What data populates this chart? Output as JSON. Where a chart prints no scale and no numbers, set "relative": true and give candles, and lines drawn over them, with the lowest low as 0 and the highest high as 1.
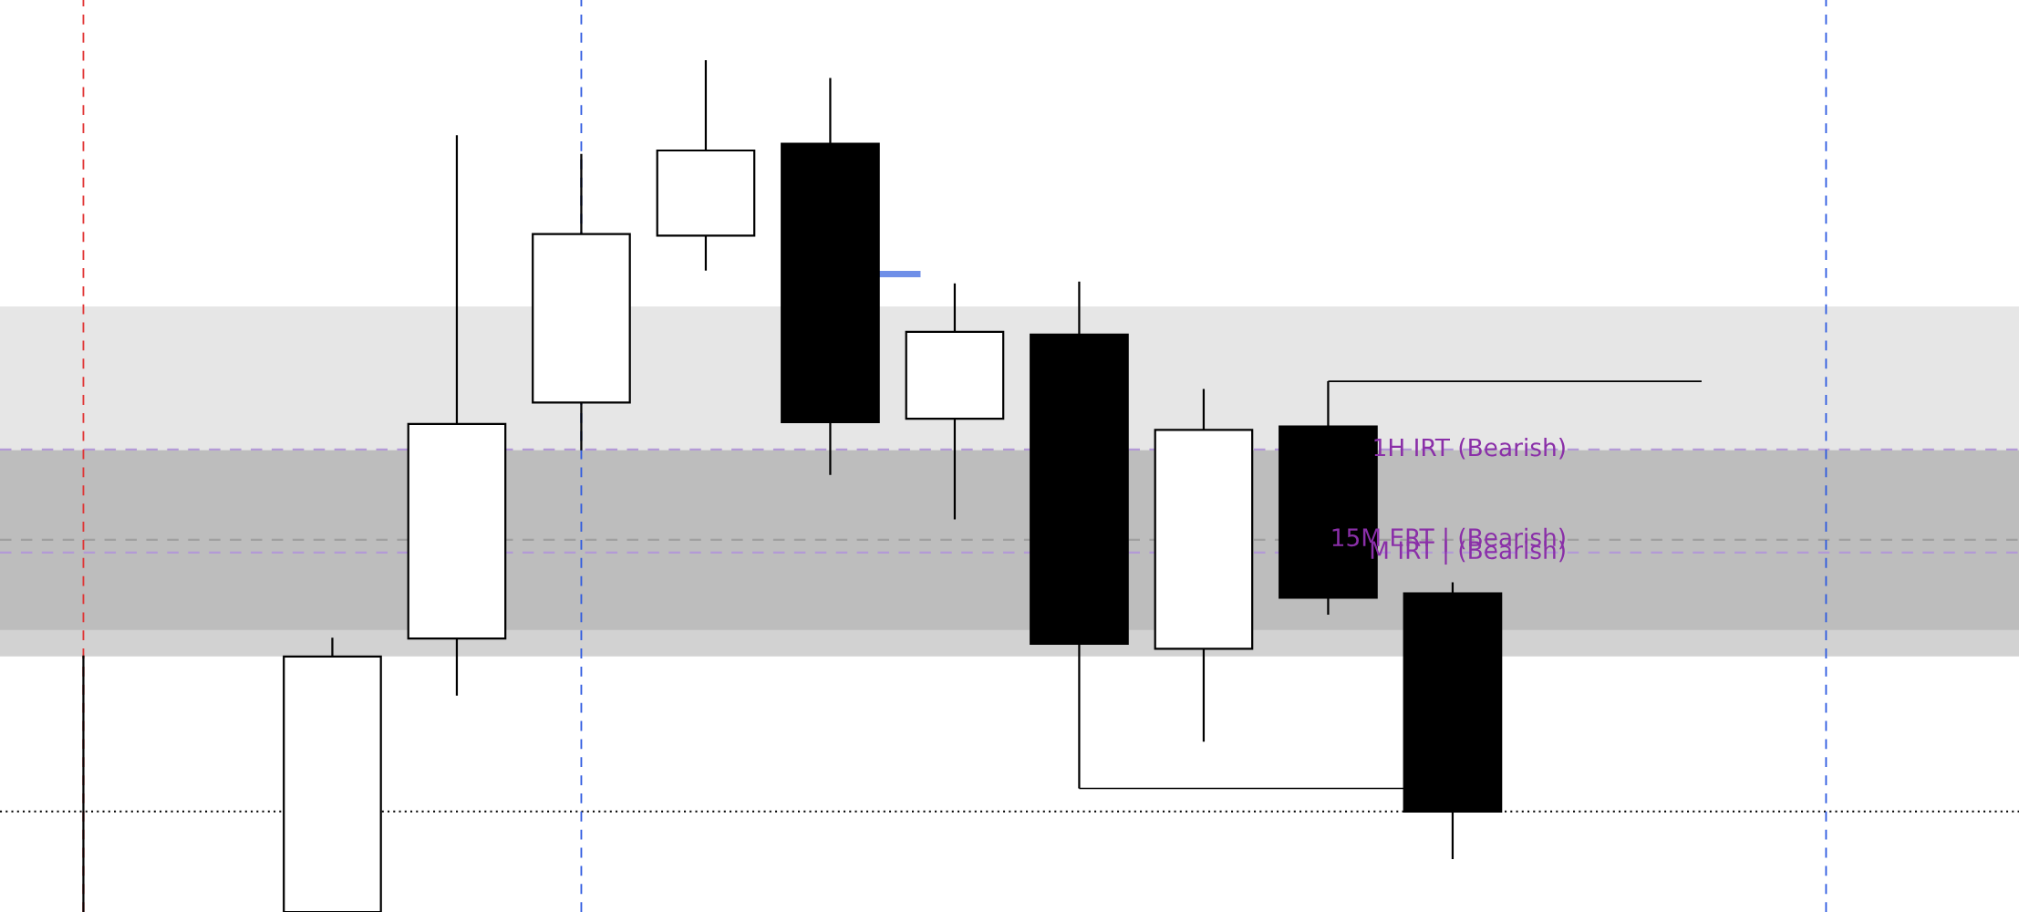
{
  "chart_data": {
    "type": "candlestick",
    "relative": true,
    "categories": [
      null,
      null,
      null,
      null,
      null,
      null,
      null,
      null,
      null,
      null
    ],
    "ohlc": [
      [
        0,
        0.322,
        0,
        0.3
      ],
      [
        0.321,
        0.912,
        0.254,
        0.573
      ],
      [
        0.598,
        0.89,
        0.542,
        0.796
      ],
      [
        0.794,
        1.0,
        0.753,
        0.894
      ],
      [
        0.902,
        0.979,
        0.513,
        0.575
      ],
      [
        0.579,
        0.738,
        0.461,
        0.681
      ],
      [
        0.678,
        0.74,
        0.145,
        0.315
      ],
      [
        0.309,
        0.614,
        0.2,
        0.566
      ],
      [
        0.57,
        0.623,
        0.349,
        0.369
      ],
      [
        0.374,
        0.387,
        0.062,
        0.118
      ]
    ],
    "bands": [
      {
        "axis": "y",
        "from": 0.375,
        "to": 0.711,
        "color": "#e6e6e6"
      },
      {
        "axis": "y",
        "from": 0.3,
        "to": 0.542,
        "color": "#d2d2d2"
      },
      {
        "axis": "y",
        "from": 0.331,
        "to": 0.542,
        "color": "#bdbdbd"
      }
    ],
    "ref_lines": [
      {
        "axis": "y",
        "value": 0.543,
        "label": "1H IRT (Bearish)",
        "color": "#b39ad6",
        "line_style": "dashed"
      },
      {
        "axis": "y",
        "value": 0.437,
        "label": "15M ERT | (Bearish)",
        "color": "#a0a0a0",
        "line_style": "dashed"
      },
      {
        "axis": "y",
        "value": 0.422,
        "label": "M IRT | (Bearish)",
        "color": "#b39ad6",
        "line_style": "dashed"
      },
      {
        "axis": "y",
        "value": 0.118,
        "color": "#000000",
        "line_style": "dotted"
      }
    ]
  }
}
